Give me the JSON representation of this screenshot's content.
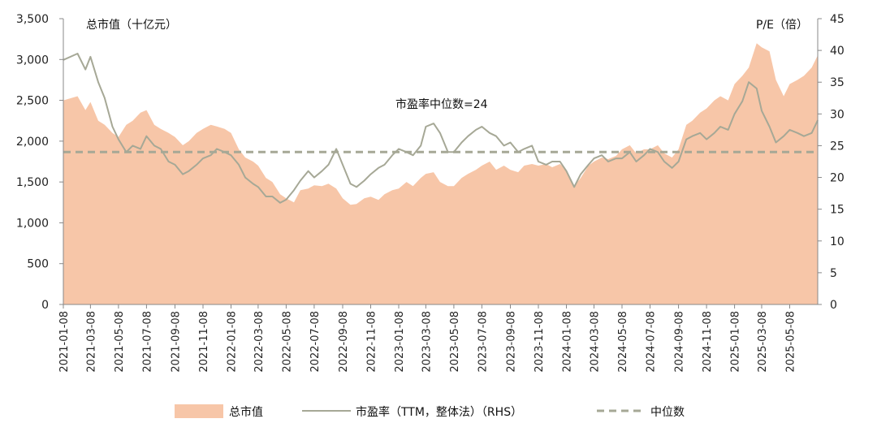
{
  "chart_data": {
    "type": "area",
    "left_axis_title": "总市值（十亿元）",
    "right_axis_title": "P/E（倍）",
    "annotation": "市盈率中位数=24",
    "y_left": {
      "min": 0,
      "max": 3500,
      "ticks": [
        "0",
        "500",
        "1,000",
        "1,500",
        "2,000",
        "2,500",
        "3,000",
        "3,500"
      ]
    },
    "y_right": {
      "min": 0,
      "max": 45,
      "ticks": [
        "0",
        "5",
        "10",
        "15",
        "20",
        "25",
        "30",
        "35",
        "40",
        "45"
      ]
    },
    "x_ticks": [
      "2021-01-08",
      "2021-03-08",
      "2021-05-08",
      "2021-07-08",
      "2021-09-08",
      "2021-11-08",
      "2022-01-08",
      "2022-03-08",
      "2022-05-08",
      "2022-07-08",
      "2022-09-08",
      "2022-11-08",
      "2023-01-08",
      "2023-03-08",
      "2023-05-08",
      "2023-07-08",
      "2023-09-08",
      "2023-11-08",
      "2024-01-08",
      "2024-03-08",
      "2024-05-08",
      "2024-07-08",
      "2024-09-08",
      "2024-11-08",
      "2025-01-08",
      "2025-03-08",
      "2025-05-08"
    ],
    "x_range": [
      "2021-01-08",
      "2025-07-08"
    ],
    "legend": [
      "总市值",
      "市盈率（TTM，整体法）（RHS）",
      "中位数"
    ],
    "legend_position": "bottom",
    "colors": {
      "area": "#f7c6a8",
      "pe_line": "#a6a896",
      "median": "#a6a896"
    },
    "median_pe": 24,
    "series": [
      {
        "name": "总市值",
        "axis": "left",
        "x": [
          "2021-01-08",
          "2021-02-08",
          "2021-02-25",
          "2021-03-08",
          "2021-03-25",
          "2021-04-08",
          "2021-04-25",
          "2021-05-08",
          "2021-05-25",
          "2021-06-08",
          "2021-06-25",
          "2021-07-08",
          "2021-07-25",
          "2021-08-08",
          "2021-08-25",
          "2021-09-08",
          "2021-09-25",
          "2021-10-08",
          "2021-10-25",
          "2021-11-08",
          "2021-11-25",
          "2021-12-08",
          "2021-12-25",
          "2022-01-08",
          "2022-01-25",
          "2022-02-08",
          "2022-02-25",
          "2022-03-08",
          "2022-03-25",
          "2022-04-08",
          "2022-04-25",
          "2022-05-08",
          "2022-05-25",
          "2022-06-08",
          "2022-06-25",
          "2022-07-08",
          "2022-07-25",
          "2022-08-08",
          "2022-08-25",
          "2022-09-08",
          "2022-09-25",
          "2022-10-08",
          "2022-10-25",
          "2022-11-08",
          "2022-11-25",
          "2022-12-08",
          "2022-12-25",
          "2023-01-08",
          "2023-01-25",
          "2023-02-08",
          "2023-02-25",
          "2023-03-08",
          "2023-03-25",
          "2023-04-08",
          "2023-04-25",
          "2023-05-08",
          "2023-05-25",
          "2023-06-08",
          "2023-06-25",
          "2023-07-08",
          "2023-07-25",
          "2023-08-08",
          "2023-08-25",
          "2023-09-08",
          "2023-09-25",
          "2023-10-08",
          "2023-10-25",
          "2023-11-08",
          "2023-11-25",
          "2023-12-08",
          "2023-12-25",
          "2024-01-08",
          "2024-01-25",
          "2024-02-08",
          "2024-02-25",
          "2024-03-08",
          "2024-03-25",
          "2024-04-08",
          "2024-04-25",
          "2024-05-08",
          "2024-05-25",
          "2024-06-08",
          "2024-06-25",
          "2024-07-08",
          "2024-07-25",
          "2024-08-08",
          "2024-08-25",
          "2024-09-08",
          "2024-09-25",
          "2024-10-08",
          "2024-10-25",
          "2024-11-08",
          "2024-11-25",
          "2024-12-08",
          "2024-12-25",
          "2025-01-08",
          "2025-01-25",
          "2025-02-08",
          "2025-02-25",
          "2025-03-08",
          "2025-03-25",
          "2025-04-08",
          "2025-04-25",
          "2025-05-08",
          "2025-05-25",
          "2025-06-08",
          "2025-06-25",
          "2025-07-08"
        ],
        "values": [
          2500,
          2550,
          2380,
          2480,
          2250,
          2200,
          2100,
          2050,
          2200,
          2250,
          2350,
          2380,
          2200,
          2150,
          2100,
          2050,
          1950,
          2000,
          2100,
          2150,
          2200,
          2180,
          2150,
          2100,
          1900,
          1800,
          1750,
          1700,
          1550,
          1500,
          1350,
          1300,
          1250,
          1400,
          1420,
          1460,
          1450,
          1480,
          1420,
          1300,
          1220,
          1230,
          1300,
          1320,
          1280,
          1350,
          1400,
          1420,
          1500,
          1450,
          1550,
          1600,
          1620,
          1500,
          1450,
          1450,
          1550,
          1600,
          1650,
          1700,
          1750,
          1650,
          1700,
          1650,
          1620,
          1700,
          1720,
          1700,
          1720,
          1680,
          1720,
          1650,
          1450,
          1550,
          1700,
          1750,
          1800,
          1780,
          1820,
          1900,
          1950,
          1850,
          1900,
          1900,
          1950,
          1850,
          1800,
          1900,
          2200,
          2250,
          2350,
          2400,
          2500,
          2550,
          2500,
          2700,
          2800,
          2900,
          3200,
          3150,
          3100,
          2750,
          2550,
          2700,
          2750,
          2800,
          2900,
          3050
        ]
      },
      {
        "name": "市盈率（TTM，整体法）（RHS）",
        "axis": "right",
        "x": [
          "2021-01-08",
          "2021-02-08",
          "2021-02-25",
          "2021-03-08",
          "2021-03-25",
          "2021-04-08",
          "2021-04-25",
          "2021-05-08",
          "2021-05-25",
          "2021-06-08",
          "2021-06-25",
          "2021-07-08",
          "2021-07-25",
          "2021-08-08",
          "2021-08-25",
          "2021-09-08",
          "2021-09-25",
          "2021-10-08",
          "2021-10-25",
          "2021-11-08",
          "2021-11-25",
          "2021-12-08",
          "2021-12-25",
          "2022-01-08",
          "2022-01-25",
          "2022-02-08",
          "2022-02-25",
          "2022-03-08",
          "2022-03-25",
          "2022-04-08",
          "2022-04-25",
          "2022-05-08",
          "2022-05-25",
          "2022-06-08",
          "2022-06-25",
          "2022-07-08",
          "2022-07-25",
          "2022-08-08",
          "2022-08-25",
          "2022-09-08",
          "2022-09-25",
          "2022-10-08",
          "2022-10-25",
          "2022-11-08",
          "2022-11-25",
          "2022-12-08",
          "2022-12-25",
          "2023-01-08",
          "2023-01-25",
          "2023-02-08",
          "2023-02-25",
          "2023-03-08",
          "2023-03-25",
          "2023-04-08",
          "2023-04-25",
          "2023-05-08",
          "2023-05-25",
          "2023-06-08",
          "2023-06-25",
          "2023-07-08",
          "2023-07-25",
          "2023-08-08",
          "2023-08-25",
          "2023-09-08",
          "2023-09-25",
          "2023-10-08",
          "2023-10-25",
          "2023-11-08",
          "2023-11-25",
          "2023-12-08",
          "2023-12-25",
          "2024-01-08",
          "2024-01-25",
          "2024-02-08",
          "2024-02-25",
          "2024-03-08",
          "2024-03-25",
          "2024-04-08",
          "2024-04-25",
          "2024-05-08",
          "2024-05-25",
          "2024-06-08",
          "2024-06-25",
          "2024-07-08",
          "2024-07-25",
          "2024-08-08",
          "2024-08-25",
          "2024-09-08",
          "2024-09-25",
          "2024-10-08",
          "2024-10-25",
          "2024-11-08",
          "2024-11-25",
          "2024-12-08",
          "2024-12-25",
          "2025-01-08",
          "2025-01-25",
          "2025-02-08",
          "2025-02-25",
          "2025-03-08",
          "2025-03-25",
          "2025-04-08",
          "2025-04-25",
          "2025-05-08",
          "2025-05-25",
          "2025-06-08",
          "2025-06-25",
          "2025-07-08"
        ],
        "values": [
          38.5,
          39.5,
          37.0,
          39.0,
          35.0,
          32.5,
          28.0,
          26.0,
          24.0,
          25.0,
          24.5,
          26.5,
          25.0,
          24.5,
          22.5,
          22.0,
          20.5,
          21.0,
          22.0,
          23.0,
          23.5,
          24.5,
          24.0,
          23.5,
          22.0,
          20.0,
          19.0,
          18.5,
          17.0,
          17.0,
          16.0,
          16.5,
          18.0,
          19.5,
          21.0,
          20.0,
          21.0,
          22.0,
          24.5,
          22.0,
          19.0,
          18.5,
          19.5,
          20.5,
          21.5,
          22.0,
          23.5,
          24.5,
          24.0,
          23.5,
          25.0,
          28.0,
          28.5,
          27.0,
          24.0,
          24.0,
          25.5,
          26.5,
          27.5,
          28.0,
          27.0,
          26.5,
          25.0,
          25.5,
          24.0,
          24.5,
          25.0,
          22.5,
          22.0,
          22.5,
          22.5,
          21.0,
          18.5,
          20.5,
          22.0,
          23.0,
          23.5,
          22.5,
          23.0,
          23.0,
          24.0,
          22.5,
          23.5,
          24.5,
          24.0,
          22.5,
          21.5,
          22.5,
          26.0,
          26.5,
          27.0,
          26.0,
          27.0,
          28.0,
          27.5,
          30.0,
          32.0,
          35.0,
          34.0,
          30.5,
          28.0,
          25.5,
          26.5,
          27.5,
          27.0,
          26.5,
          27.0,
          29.0
        ]
      },
      {
        "name": "中位数",
        "axis": "right",
        "x": [
          "2021-01-08",
          "2025-07-08"
        ],
        "values": [
          24,
          24
        ]
      }
    ]
  }
}
